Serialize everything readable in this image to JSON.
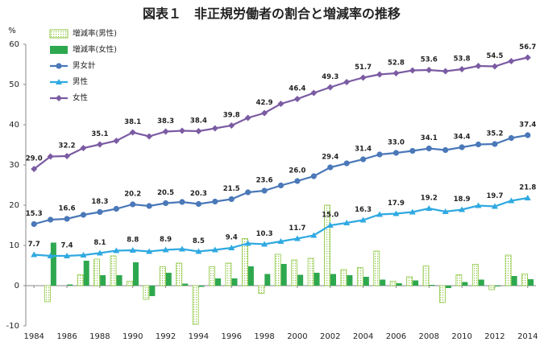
{
  "chart_data": {
    "type": "combo",
    "title": "図表１　非正規労働者の割合と増減率の推移",
    "y_label": "%",
    "x": [
      1984,
      1985,
      1986,
      1987,
      1988,
      1989,
      1990,
      1991,
      1992,
      1993,
      1994,
      1995,
      1996,
      1997,
      1998,
      1999,
      2000,
      2001,
      2002,
      2003,
      2004,
      2005,
      2006,
      2007,
      2008,
      2009,
      2010,
      2011,
      2012,
      2013,
      2014
    ],
    "xlim": [
      1983.5,
      2014.5
    ],
    "xticks": [
      1984,
      1986,
      1988,
      1990,
      1992,
      1994,
      1996,
      1998,
      2000,
      2002,
      2004,
      2006,
      2008,
      2010,
      2012,
      2014
    ],
    "ylim": [
      -10,
      60
    ],
    "yticks": [
      -10,
      0,
      10,
      20,
      30,
      40,
      50,
      60
    ],
    "legend": "upper left",
    "series": [
      {
        "name": "増減率(男性)",
        "type": "bar",
        "hatch": true,
        "color": "#8cc63f",
        "values": [
          null,
          -4,
          0,
          2.7,
          6.6,
          7.4,
          1.1,
          -3.4,
          4.7,
          5.6,
          -9.6,
          4.7,
          5.6,
          11.7,
          -1.9,
          7.8,
          6.4,
          6.8,
          20,
          4,
          4.5,
          8.6,
          1.1,
          2.2,
          4.9,
          -4.2,
          2.7,
          5.3,
          -1,
          7.6,
          2.9
        ]
      },
      {
        "name": "増減率(女性)",
        "type": "bar",
        "hatch": false,
        "color": "#2ea84f",
        "values": [
          null,
          10.7,
          0.3,
          6.2,
          2.6,
          2.6,
          5.8,
          -2.6,
          3.2,
          0.5,
          -0.3,
          1.8,
          1.8,
          4.8,
          2.9,
          5.4,
          2.7,
          3.2,
          2.9,
          2.6,
          2.2,
          1.5,
          0.6,
          1.3,
          0.2,
          -0.6,
          0.9,
          1.5,
          -0.2,
          2.4,
          1.6
        ]
      },
      {
        "name": "男女計",
        "type": "line",
        "marker": "circle",
        "color": "#4a78b8",
        "values": [
          15.3,
          16.4,
          16.6,
          17.6,
          18.3,
          19.1,
          20.2,
          19.8,
          20.5,
          20.8,
          20.3,
          20.9,
          21.5,
          23.2,
          23.6,
          24.9,
          26.0,
          27.2,
          29.4,
          30.4,
          31.4,
          32.6,
          33.0,
          33.5,
          34.1,
          33.7,
          34.4,
          35.1,
          35.2,
          36.7,
          37.4
        ],
        "value_labels": [
          "15.3",
          null,
          "16.6",
          null,
          "18.3",
          null,
          "20.2",
          null,
          "20.5",
          null,
          "20.3",
          null,
          "21.5",
          null,
          "23.6",
          null,
          "26.0",
          null,
          "29.4",
          null,
          "31.4",
          null,
          "33.0",
          null,
          "34.1",
          null,
          "34.4",
          null,
          "35.2",
          null,
          "37.4"
        ]
      },
      {
        "name": "男性",
        "type": "line",
        "marker": "triangle",
        "color": "#2fa9e1",
        "values": [
          7.7,
          7.4,
          7.4,
          7.6,
          8.1,
          8.7,
          8.8,
          8.5,
          8.9,
          9.1,
          8.5,
          8.9,
          9.4,
          10.5,
          10.3,
          11.0,
          11.7,
          12.5,
          15.0,
          15.6,
          16.3,
          17.7,
          17.9,
          18.3,
          19.2,
          18.4,
          18.9,
          19.9,
          19.7,
          21.1,
          21.8
        ],
        "value_labels": [
          "7.7",
          null,
          "7.4",
          null,
          "8.1",
          null,
          "8.8",
          null,
          "8.9",
          null,
          "8.5",
          null,
          "9.4",
          null,
          "10.3",
          null,
          "11.7",
          null,
          "15.0",
          null,
          "16.3",
          null,
          "17.9",
          null,
          "19.2",
          null,
          "18.9",
          null,
          "19.7",
          null,
          "21.8"
        ]
      },
      {
        "name": "女性",
        "type": "line",
        "marker": "diamond",
        "color": "#7b5ba3",
        "values": [
          29.0,
          32.1,
          32.2,
          34.2,
          35.1,
          36.0,
          38.1,
          37.1,
          38.3,
          38.5,
          38.4,
          39.1,
          39.8,
          41.7,
          42.9,
          45.2,
          46.4,
          47.9,
          49.3,
          50.6,
          51.7,
          52.5,
          52.8,
          53.5,
          53.6,
          53.3,
          53.8,
          54.6,
          54.5,
          55.8,
          56.7
        ],
        "value_labels": [
          "29.0",
          null,
          "32.2",
          null,
          "35.1",
          null,
          "38.1",
          null,
          "38.3",
          null,
          "38.4",
          null,
          "39.8",
          null,
          "42.9",
          null,
          "46.4",
          null,
          "49.3",
          null,
          "51.7",
          null,
          "52.8",
          null,
          "53.6",
          null,
          "53.8",
          null,
          "54.5",
          null,
          "56.7"
        ]
      }
    ]
  }
}
